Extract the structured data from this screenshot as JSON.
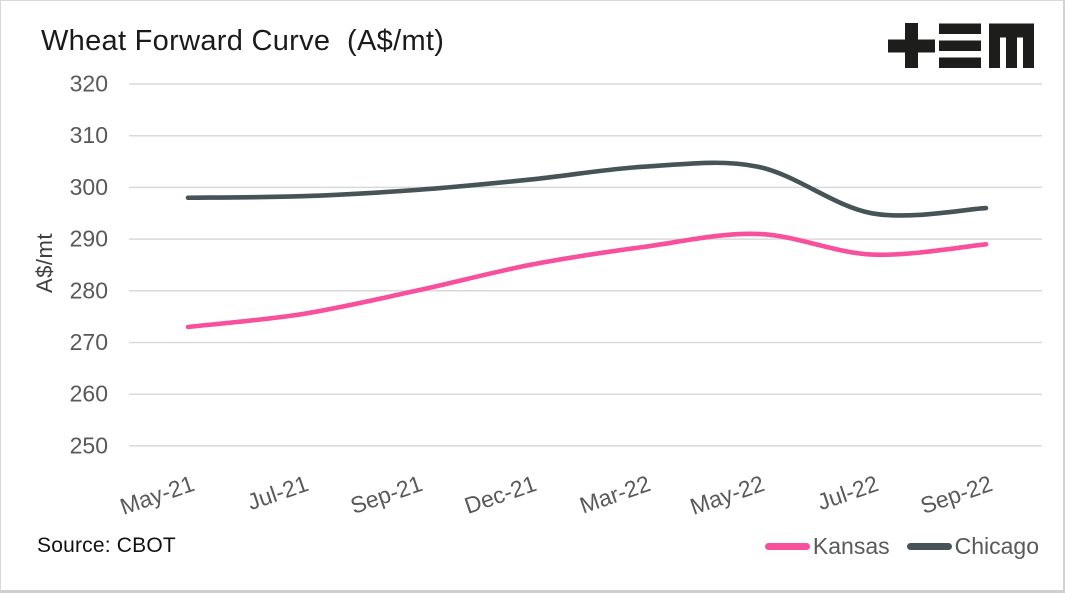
{
  "header": {
    "title": "Wheat Forward Curve  (A$/mt)",
    "logo_name": "tEM"
  },
  "chart_data": {
    "type": "line",
    "title": "Wheat Forward Curve (A$/mt)",
    "ylabel": "A$/mt",
    "ylim": [
      250,
      320
    ],
    "ytick_step": 10,
    "yticks": [
      320,
      310,
      300,
      290,
      280,
      270,
      260,
      250
    ],
    "categories": [
      "May-21",
      "Jul-21",
      "Sep-21",
      "Dec-21",
      "Mar-22",
      "May-22",
      "Jul-22",
      "Sep-22"
    ],
    "series": [
      {
        "name": "Kansas",
        "color": "#f8509c",
        "values": [
          273,
          275.5,
          280,
          285,
          288.5,
          291,
          287,
          289
        ]
      },
      {
        "name": "Chicago",
        "color": "#465458",
        "values": [
          298,
          298.3,
          299.5,
          301.5,
          304,
          304,
          295,
          296
        ]
      }
    ],
    "grid": "horizontal",
    "legend_position": "bottom-right"
  },
  "footer": {
    "source": "Source: CBOT"
  },
  "colors": {
    "kansas_pink": "#f8509c",
    "chicago_slate": "#465458",
    "axis_text": "#595959",
    "gridline": "#d9d9d9",
    "title_text": "#1a1a1a",
    "logo_black": "#1d1d1b"
  }
}
